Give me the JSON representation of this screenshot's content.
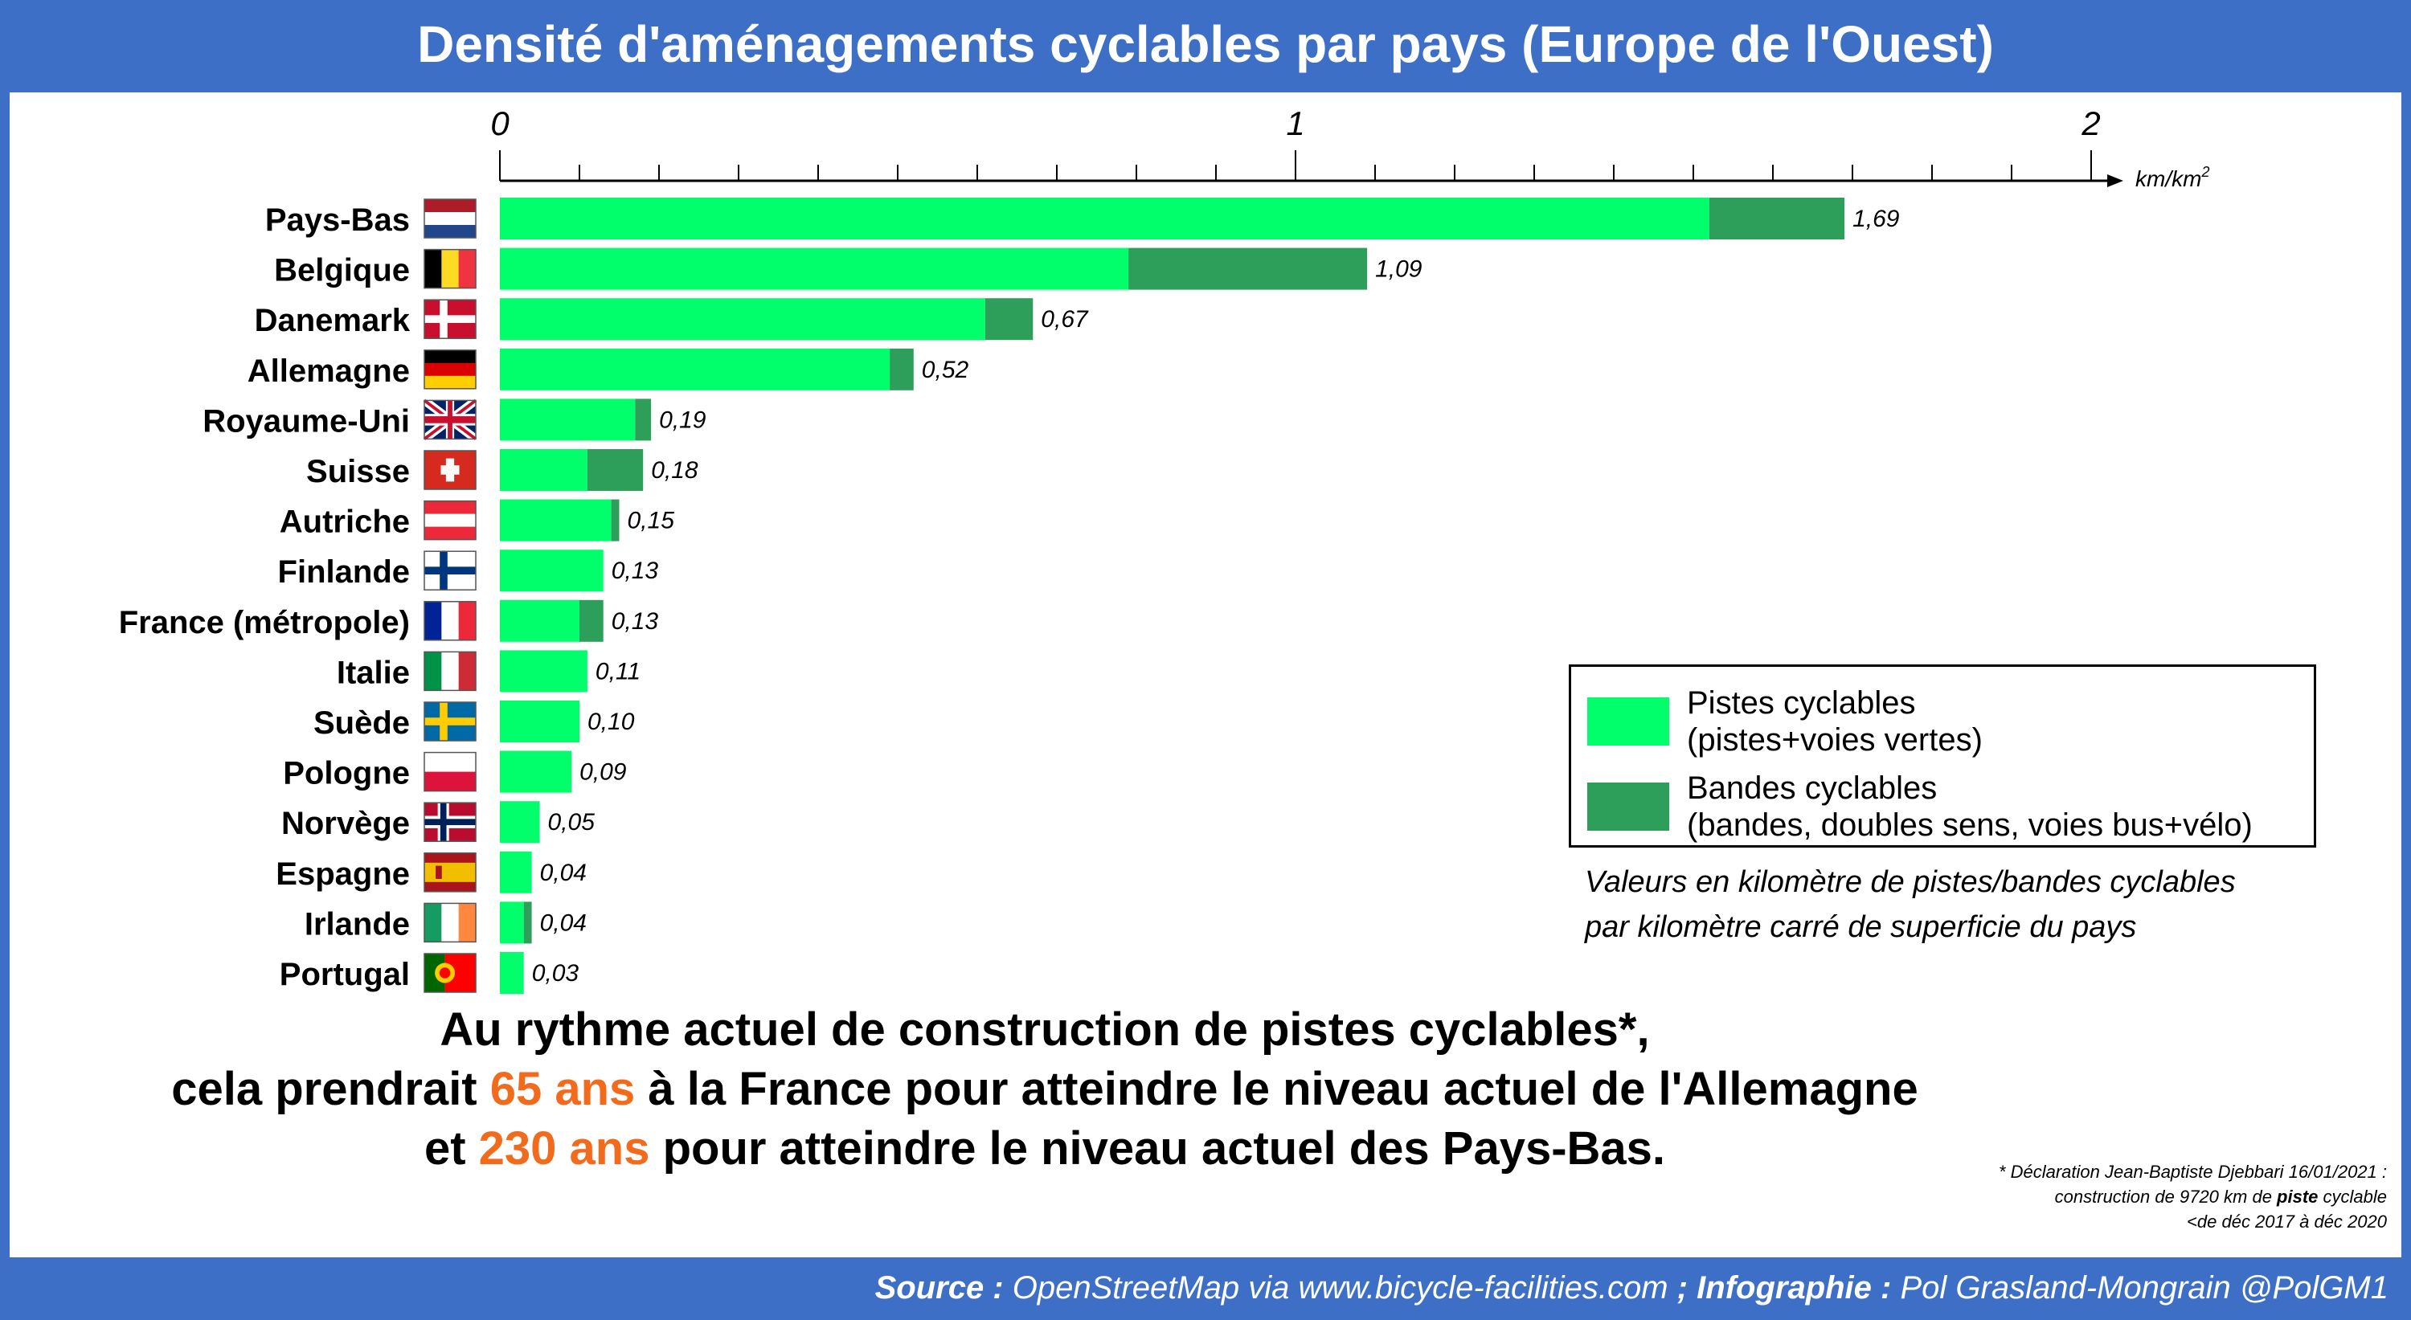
{
  "title": "Densité d'aménagements cyclables par pays (Europe de l'Ouest)",
  "chart_data": {
    "type": "bar",
    "orientation": "horizontal",
    "stacked": true,
    "categories": [
      "Pays-Bas",
      "Belgique",
      "Danemark",
      "Allemagne",
      "Royaume-Uni",
      "Suisse",
      "Autriche",
      "Finlande",
      "France (métropole)",
      "Italie",
      "Suède",
      "Pologne",
      "Norvège",
      "Espagne",
      "Irlande",
      "Portugal"
    ],
    "series": [
      {
        "name": "Pistes cyclables",
        "color": "#00ff6a",
        "values": [
          1.52,
          0.79,
          0.61,
          0.49,
          0.17,
          0.11,
          0.14,
          0.13,
          0.1,
          0.11,
          0.1,
          0.09,
          0.05,
          0.04,
          0.03,
          0.03
        ]
      },
      {
        "name": "Bandes cyclables",
        "color": "#2e9f5a",
        "values": [
          0.17,
          0.3,
          0.06,
          0.03,
          0.02,
          0.07,
          0.01,
          0.0,
          0.03,
          0.0,
          0.0,
          0.0,
          0.0,
          0.0,
          0.01,
          0.0
        ]
      }
    ],
    "totals": [
      1.69,
      1.09,
      0.67,
      0.52,
      0.19,
      0.18,
      0.15,
      0.13,
      0.13,
      0.11,
      0.1,
      0.09,
      0.05,
      0.04,
      0.04,
      0.03
    ],
    "total_labels": [
      "1,69",
      "1,09",
      "0,67",
      "0,52",
      "0,19",
      "0,18",
      "0,15",
      "0,13",
      "0,13",
      "0,11",
      "0,10",
      "0,09",
      "0,05",
      "0,04",
      "0,04",
      "0,03"
    ],
    "xlim": [
      0,
      2
    ],
    "x_ticks": [
      "0",
      "1",
      "2"
    ],
    "x_unit": "km/km²",
    "axis_position": "top",
    "legend_position": "bottom-right"
  },
  "flags": [
    {
      "type": "h3",
      "colors": [
        "#ae1c28",
        "#ffffff",
        "#21468b"
      ]
    },
    {
      "type": "v3",
      "colors": [
        "#000000",
        "#fdda24",
        "#ef3340"
      ]
    },
    {
      "type": "nordic",
      "colors": [
        "#c8102e",
        "#ffffff"
      ]
    },
    {
      "type": "h3",
      "colors": [
        "#000000",
        "#dd0000",
        "#ffce00"
      ]
    },
    {
      "type": "uk",
      "colors": [
        "#012169",
        "#ffffff",
        "#c8102e"
      ]
    },
    {
      "type": "swiss",
      "colors": [
        "#d52b1e",
        "#ffffff"
      ]
    },
    {
      "type": "h3",
      "colors": [
        "#ed2939",
        "#ffffff",
        "#ed2939"
      ]
    },
    {
      "type": "nordic",
      "colors": [
        "#ffffff",
        "#003580"
      ]
    },
    {
      "type": "v3",
      "colors": [
        "#002395",
        "#ffffff",
        "#ed2939"
      ]
    },
    {
      "type": "v3",
      "colors": [
        "#009246",
        "#ffffff",
        "#ce2b37"
      ]
    },
    {
      "type": "nordic",
      "colors": [
        "#006aa7",
        "#fecc00"
      ]
    },
    {
      "type": "h2",
      "colors": [
        "#ffffff",
        "#dc143c"
      ]
    },
    {
      "type": "nordic2",
      "colors": [
        "#ba0c2f",
        "#ffffff",
        "#00205b"
      ]
    },
    {
      "type": "spain",
      "colors": [
        "#aa151b",
        "#f1bf00",
        "#aa151b"
      ]
    },
    {
      "type": "v3",
      "colors": [
        "#169b62",
        "#ffffff",
        "#ff883e"
      ]
    },
    {
      "type": "portugal",
      "colors": [
        "#006600",
        "#ff0000",
        "#ffcc00"
      ]
    }
  ],
  "legend": {
    "items": [
      {
        "line1": "Pistes cyclables",
        "line2": "(pistes+voies vertes)",
        "color": "#00ff6a"
      },
      {
        "line1": "Bandes cyclables",
        "line2": "(bandes, doubles sens, voies bus+vélo)",
        "color": "#2e9f5a"
      }
    ]
  },
  "note": {
    "line1": "Valeurs en kilomètre de pistes/bandes cyclables",
    "line2": "par kilomètre carré de superficie du pays"
  },
  "conclusion": {
    "line1": "Au rythme actuel de construction de pistes cyclables*,",
    "line2_a": "cela prendrait ",
    "line2_hl": "65 ans",
    "line2_b": " à la France pour atteindre le niveau actuel de l'Allemagne",
    "line3_a": "et ",
    "line3_hl": "230 ans",
    "line3_b": " pour atteindre le niveau actuel des Pays-Bas."
  },
  "footnote": {
    "line1": "* Déclaration Jean-Baptiste Djebbari 16/01/2021 :",
    "line2_a": "construction de 9720 km de ",
    "line2_b": "piste",
    "line2_c": " cyclable",
    "line3": "<de déc 2017 à déc 2020"
  },
  "source": {
    "label1": "Source :",
    "text1": " OpenStreetMap via www.bicycle-facilities.com ",
    "sep": ";",
    "label2": " Infographie :",
    "text2": " Pol Grasland-Mongrain @PolGM1"
  },
  "colors": {
    "frame": "#3d6fc6",
    "highlight": "#f26b1d"
  }
}
